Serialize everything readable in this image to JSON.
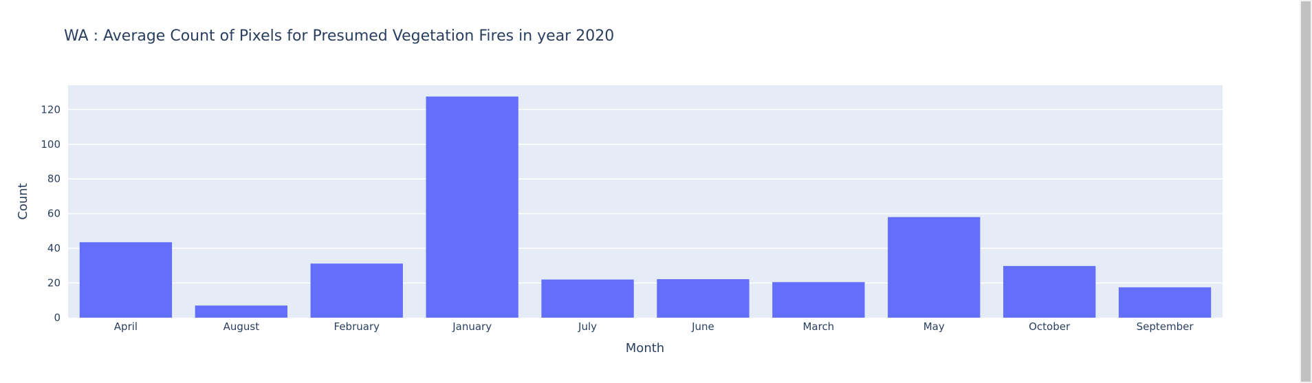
{
  "chart_data": {
    "type": "bar",
    "title": "WA : Average Count of Pixels for Presumed Vegetation Fires in year 2020",
    "xlabel": "Month",
    "ylabel": "Count",
    "categories": [
      "April",
      "August",
      "February",
      "January",
      "July",
      "June",
      "March",
      "May",
      "October",
      "September"
    ],
    "values": [
      43.5,
      7,
      31.2,
      127.5,
      22,
      22.2,
      20.5,
      58,
      29.8,
      17.5
    ],
    "ylim": [
      0,
      134
    ],
    "yticks": [
      0,
      20,
      40,
      60,
      80,
      100,
      120
    ],
    "grid": true,
    "legend": "none",
    "colors": {
      "bar": "#636efa",
      "plot_bg": "#e5ecf6",
      "grid": "#ffffff",
      "text": "#2a3f5f"
    }
  }
}
